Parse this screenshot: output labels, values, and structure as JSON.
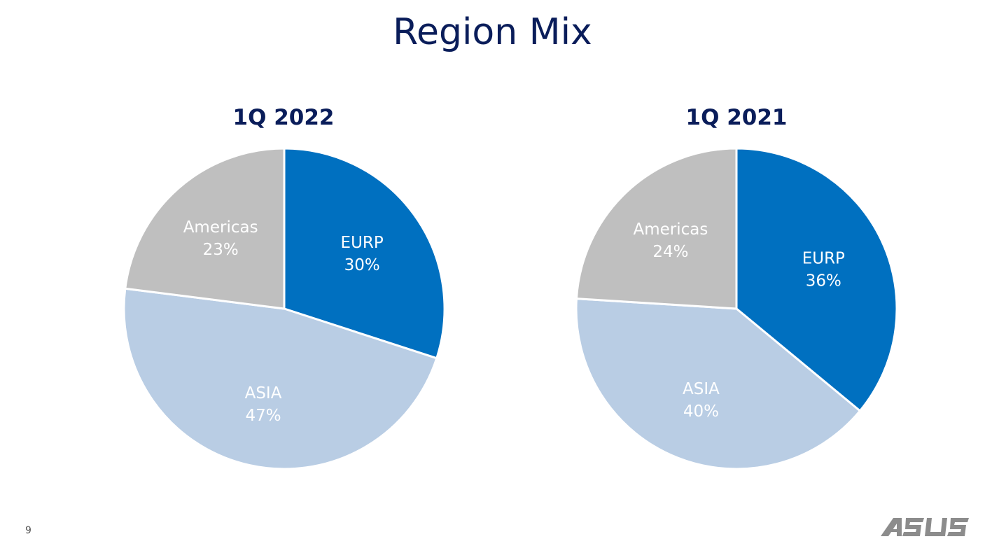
{
  "title": "Region Mix",
  "page_number": "9",
  "logo_text": "ASUS",
  "colors": {
    "title": "#0a1d5a",
    "EURP": "#0070c0",
    "ASIA": "#b9cde4",
    "Americas": "#bfbfbf",
    "slice_border": "#ffffff",
    "label": "#ffffff"
  },
  "chart_data": [
    {
      "type": "pie",
      "title": "1Q 2022",
      "categories": [
        "EURP",
        "ASIA",
        "Americas"
      ],
      "values": [
        30,
        47,
        23
      ],
      "labels": [
        "30%",
        "47%",
        "23%"
      ]
    },
    {
      "type": "pie",
      "title": "1Q 2021",
      "categories": [
        "EURP",
        "ASIA",
        "Americas"
      ],
      "values": [
        36,
        40,
        24
      ],
      "labels": [
        "36%",
        "40%",
        "24%"
      ]
    }
  ]
}
